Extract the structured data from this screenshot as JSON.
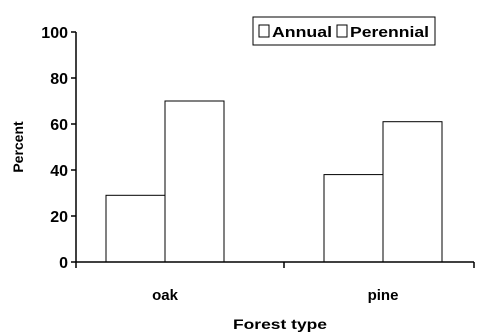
{
  "chart_data": {
    "type": "bar",
    "categories": [
      "oak",
      "pine"
    ],
    "series": [
      {
        "name": "Annual",
        "values": [
          29,
          38
        ]
      },
      {
        "name": "Perennial",
        "values": [
          70,
          61
        ]
      }
    ],
    "title": "",
    "xlabel": "Forest type",
    "ylabel": "Percent",
    "ylim": [
      0,
      100
    ],
    "yticks": [
      "0",
      "20",
      "40",
      "60",
      "80",
      "100"
    ],
    "ytick_values": [
      0,
      20,
      40,
      60,
      80,
      100
    ],
    "grid": false,
    "legend_position": "top-right",
    "bar_fill": "#ffffff",
    "bar_stroke": "#000000"
  }
}
